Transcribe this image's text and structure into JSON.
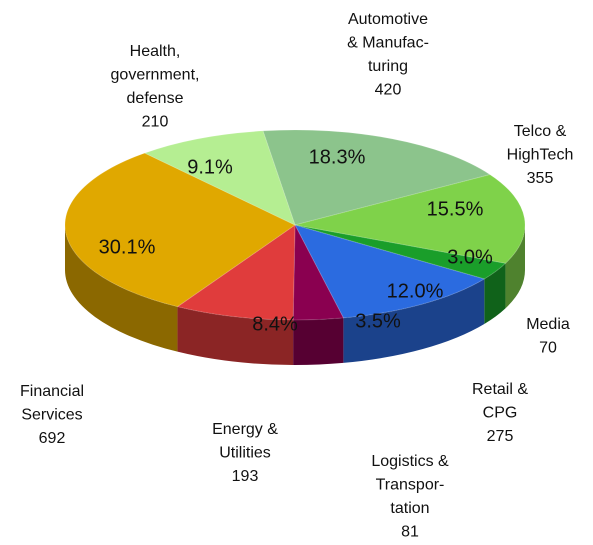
{
  "chart_data": {
    "type": "pie",
    "categories": [
      [
        "Automotive",
        "& Manufac-",
        "turing"
      ],
      [
        "Telco &",
        "HighTech"
      ],
      [
        "Media"
      ],
      [
        "Retail &",
        "CPG"
      ],
      [
        "Logistics &",
        "Transpor-",
        "tation"
      ],
      [
        "Energy &",
        "Utilities"
      ],
      [
        "Financial",
        "Services"
      ],
      [
        "Health,",
        "government,",
        "defense"
      ]
    ],
    "values": [
      18.3,
      15.5,
      3.0,
      12.0,
      3.5,
      8.4,
      30.1,
      9.1
    ],
    "value_labels": [
      "18.3%",
      "15.5%",
      "3.0%",
      "12.0%",
      "3.5%",
      "8.4%",
      "30.1%",
      "9.1%"
    ],
    "counts": [
      420,
      355,
      70,
      275,
      81,
      193,
      692,
      210
    ],
    "colors": [
      "#8cc48c",
      "#7fd24a",
      "#1a9e2a",
      "#2b6be0",
      "#8a0050",
      "#e03c3c",
      "#e0a800",
      "#b5ee92"
    ]
  }
}
